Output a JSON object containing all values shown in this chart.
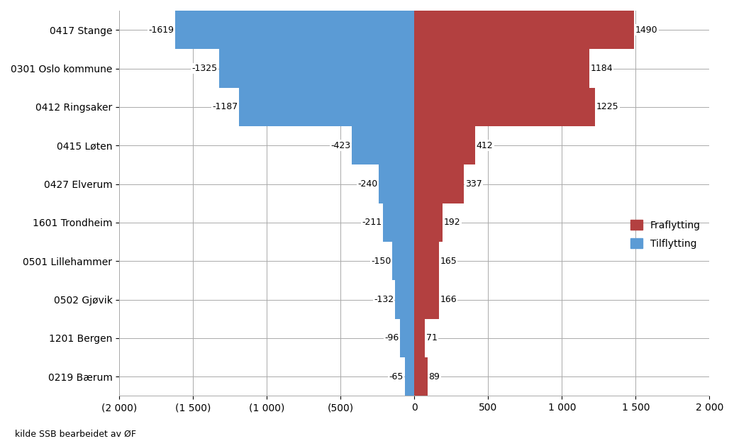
{
  "categories": [
    "0417 Stange",
    "0301 Oslo kommune",
    "0412 Ringsaker",
    "0415 Løten",
    "0427 Elverum",
    "1601 Trondheim",
    "0501 Lillehammer",
    "0502 Gjøvik",
    "1201 Bergen",
    "0219 Bærum"
  ],
  "fraflytting": [
    -1619,
    -1325,
    -1187,
    -423,
    -240,
    -211,
    -150,
    -132,
    -96,
    -65
  ],
  "tilflytting": [
    1490,
    1184,
    1225,
    412,
    337,
    192,
    165,
    166,
    71,
    89
  ],
  "fraflytting_color": "#b34040",
  "tilflytting_color": "#5b9bd5",
  "background_color": "#ffffff",
  "xlim": [
    -2000,
    2000
  ],
  "xtick_values": [
    -2000,
    -1500,
    -1000,
    -500,
    0,
    500,
    1000,
    1500,
    2000
  ],
  "xtick_labels": [
    "(2 000)",
    "(1 500)",
    "(1 000)",
    "(500)",
    "0",
    "500",
    "1 000",
    "1 500",
    "2 000"
  ],
  "legend_fraflytting": "Fraflytting",
  "legend_tilflytting": "Tilflytting",
  "source_text": "kilde SSB bearbeidet av ØF",
  "bar_height": 1.0,
  "font_size": 10,
  "label_font_size": 9
}
